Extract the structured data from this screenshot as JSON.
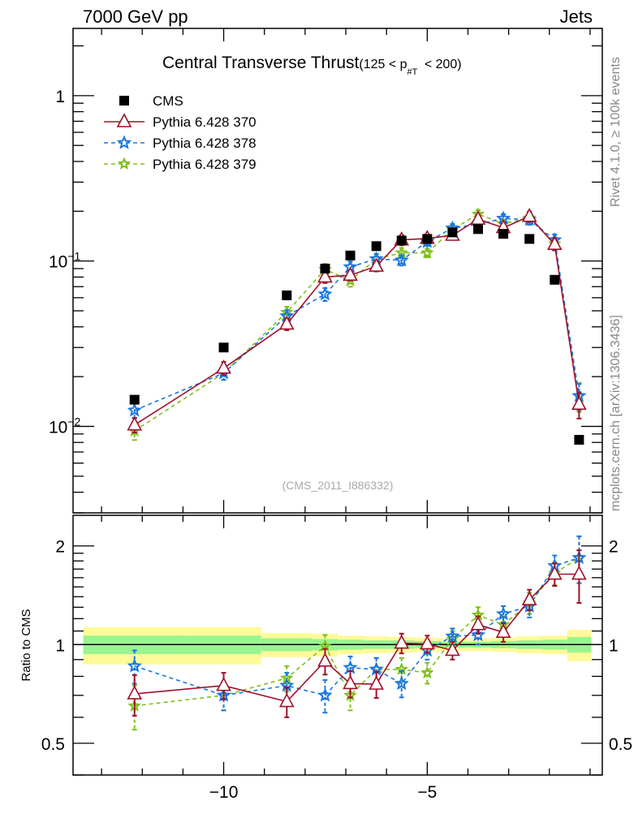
{
  "header": {
    "left": "7000 GeV pp",
    "right": "Jets"
  },
  "side_labels": {
    "rivet": "Rivet 4.1.0, ≥ 100k events",
    "mcplots": "mcplots.cern.ch [arXiv:1306.3436]"
  },
  "colors": {
    "cms": "#000000",
    "p370": "#a0102a",
    "p378": "#1a78e0",
    "p379": "#7fbf1a",
    "band_outer": "#fffa99",
    "band_inner": "#99f58f"
  },
  "chart_data": [
    {
      "type": "scatter",
      "title": "Central Transverse Thrust",
      "title_suffix": "(125 < p",
      "title_sub": "#T",
      "title_end": " < 200)",
      "analysis_label": "(CMS_2011_I886332)",
      "yscale": "log",
      "ylim": [
        0.003,
        2.55
      ],
      "xlim": [
        -13.7,
        -0.7
      ],
      "ytick_labels": [
        {
          "value": 1,
          "label": "1"
        },
        {
          "value": 0.1,
          "label": "10",
          "exp": "−1"
        },
        {
          "value": 0.01,
          "label": "10",
          "exp": "−2"
        }
      ],
      "legend_position": "top-left",
      "x": [
        -12.19,
        -10.0,
        -8.45,
        -7.51,
        -6.89,
        -6.25,
        -5.63,
        -5.0,
        -4.38,
        -3.75,
        -3.13,
        -2.49,
        -1.87,
        -1.27
      ],
      "series": [
        {
          "name": "CMS",
          "key": "cms",
          "marker": "square",
          "values": [
            0.0145,
            0.03,
            0.062,
            0.09,
            0.108,
            0.123,
            0.133,
            0.136,
            0.149,
            0.156,
            0.146,
            0.136,
            0.077,
            0.0083
          ]
        },
        {
          "name": "Pythia 6.428 370",
          "key": "p370",
          "marker": "triangle-open",
          "line": "solid",
          "values": [
            0.0102,
            0.0225,
            0.0415,
            0.08,
            0.082,
            0.093,
            0.134,
            0.137,
            0.143,
            0.179,
            0.159,
            0.186,
            0.126,
            0.0136
          ],
          "rel_err": [
            0.1,
            0.09,
            0.08,
            0.08,
            0.07,
            0.07,
            0.07,
            0.06,
            0.06,
            0.06,
            0.06,
            0.07,
            0.08,
            0.18
          ]
        },
        {
          "name": "Pythia 6.428 378",
          "key": "p378",
          "marker": "star",
          "line": "dashed",
          "values": [
            0.0125,
            0.021,
            0.0465,
            0.063,
            0.092,
            0.103,
            0.101,
            0.131,
            0.158,
            0.167,
            0.181,
            0.178,
            0.134,
            0.0153
          ],
          "rel_err": [
            0.1,
            0.09,
            0.08,
            0.09,
            0.08,
            0.07,
            0.07,
            0.06,
            0.06,
            0.06,
            0.06,
            0.07,
            0.08,
            0.18
          ]
        },
        {
          "name": "Pythia 6.428 379",
          "key": "p379",
          "marker": "star",
          "line": "dashed",
          "values": [
            0.0094,
            0.021,
            0.049,
            0.089,
            0.076,
            0.103,
            0.112,
            0.112,
            0.155,
            0.192,
            0.168,
            0.182,
            0.127,
            0.0153
          ],
          "rel_err": [
            0.12,
            0.09,
            0.08,
            0.08,
            0.08,
            0.07,
            0.07,
            0.06,
            0.06,
            0.06,
            0.06,
            0.07,
            0.08,
            0.2
          ]
        }
      ]
    },
    {
      "type": "scatter",
      "ylabel": "Ratio to CMS",
      "yscale": "log",
      "ylim": [
        0.4,
        2.48
      ],
      "xlim": [
        -13.7,
        -0.7
      ],
      "xtick_labels": [
        {
          "value": -10,
          "label": "−10"
        },
        {
          "value": -5,
          "label": "−5"
        }
      ],
      "ytick_labels": [
        {
          "value": 2,
          "label": "2"
        },
        {
          "value": 1,
          "label": "1"
        },
        {
          "value": 0.5,
          "label": "0.5"
        }
      ],
      "bin_edges": [
        -13.45,
        -10.95,
        -9.08,
        -7.82,
        -7.2,
        -6.57,
        -5.94,
        -5.31,
        -4.69,
        -4.06,
        -3.44,
        -2.81,
        -2.19,
        -1.56,
        -0.97
      ],
      "band_outer_err": [
        0.13,
        0.13,
        0.085,
        0.08,
        0.065,
        0.06,
        0.055,
        0.05,
        0.045,
        0.045,
        0.05,
        0.06,
        0.065,
        0.11
      ],
      "band_inner_err": [
        0.065,
        0.065,
        0.045,
        0.04,
        0.035,
        0.03,
        0.03,
        0.025,
        0.02,
        0.02,
        0.025,
        0.03,
        0.035,
        0.055
      ],
      "series": [
        {
          "name": "Pythia 6.428 370",
          "key": "p370",
          "values": [
            0.707,
            0.75,
            0.67,
            0.89,
            0.76,
            0.757,
            1.01,
            1.005,
            0.96,
            1.15,
            1.09,
            1.37,
            1.64,
            1.64
          ],
          "err": [
            0.1,
            0.07,
            0.07,
            0.08,
            0.07,
            0.07,
            0.07,
            0.06,
            0.06,
            0.07,
            0.07,
            0.1,
            0.13,
            0.3
          ]
        },
        {
          "name": "Pythia 6.428 378",
          "key": "p378",
          "values": [
            0.86,
            0.7,
            0.75,
            0.7,
            0.85,
            0.84,
            0.76,
            0.96,
            1.06,
            1.07,
            1.24,
            1.31,
            1.74,
            1.84
          ],
          "err": [
            0.1,
            0.07,
            0.07,
            0.08,
            0.07,
            0.07,
            0.07,
            0.06,
            0.06,
            0.07,
            0.07,
            0.1,
            0.13,
            0.3
          ]
        },
        {
          "name": "Pythia 6.428 379",
          "key": "p379",
          "values": [
            0.65,
            0.7,
            0.79,
            0.99,
            0.7,
            0.84,
            0.84,
            0.82,
            1.04,
            1.23,
            1.15,
            1.34,
            1.65,
            1.84
          ],
          "err": [
            0.1,
            0.07,
            0.07,
            0.08,
            0.07,
            0.07,
            0.07,
            0.06,
            0.06,
            0.07,
            0.07,
            0.1,
            0.13,
            0.3
          ]
        }
      ]
    }
  ]
}
